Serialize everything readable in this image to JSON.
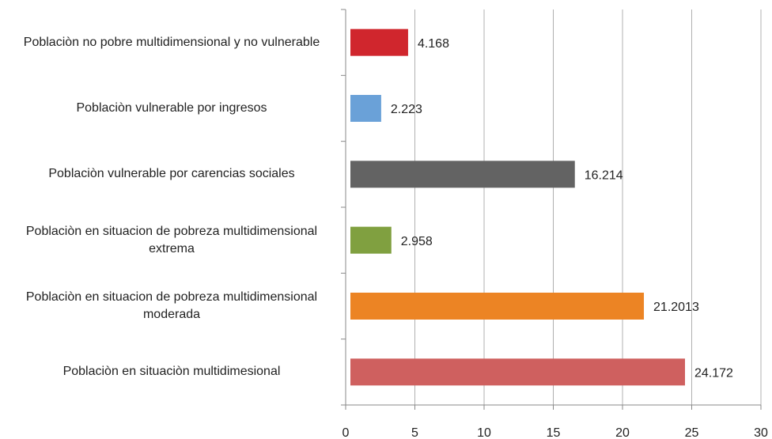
{
  "chart_data": {
    "type": "bar",
    "orientation": "horizontal",
    "categories": [
      "Poblaciòn no pobre multidimensional y no vulnerable",
      "Poblaciòn vulnerable por ingresos",
      "Poblaciòn vulnerable por carencias sociales",
      "Poblaciòn en situacion de pobreza multidimensional extrema",
      "Poblaciòn en situacion de pobreza multidimensional moderada",
      "Poblaciòn en situaciòn multidimesional"
    ],
    "values": [
      4.168,
      2.223,
      16.214,
      2.958,
      21.2013,
      24.172
    ],
    "colors": [
      "#d0262d",
      "#6aa1d8",
      "#636363",
      "#80a040",
      "#ec8424",
      "#cf605f"
    ],
    "xlim": [
      0,
      30
    ],
    "xticks": [
      0,
      5,
      10,
      15,
      20,
      25,
      30
    ],
    "grid": true
  }
}
